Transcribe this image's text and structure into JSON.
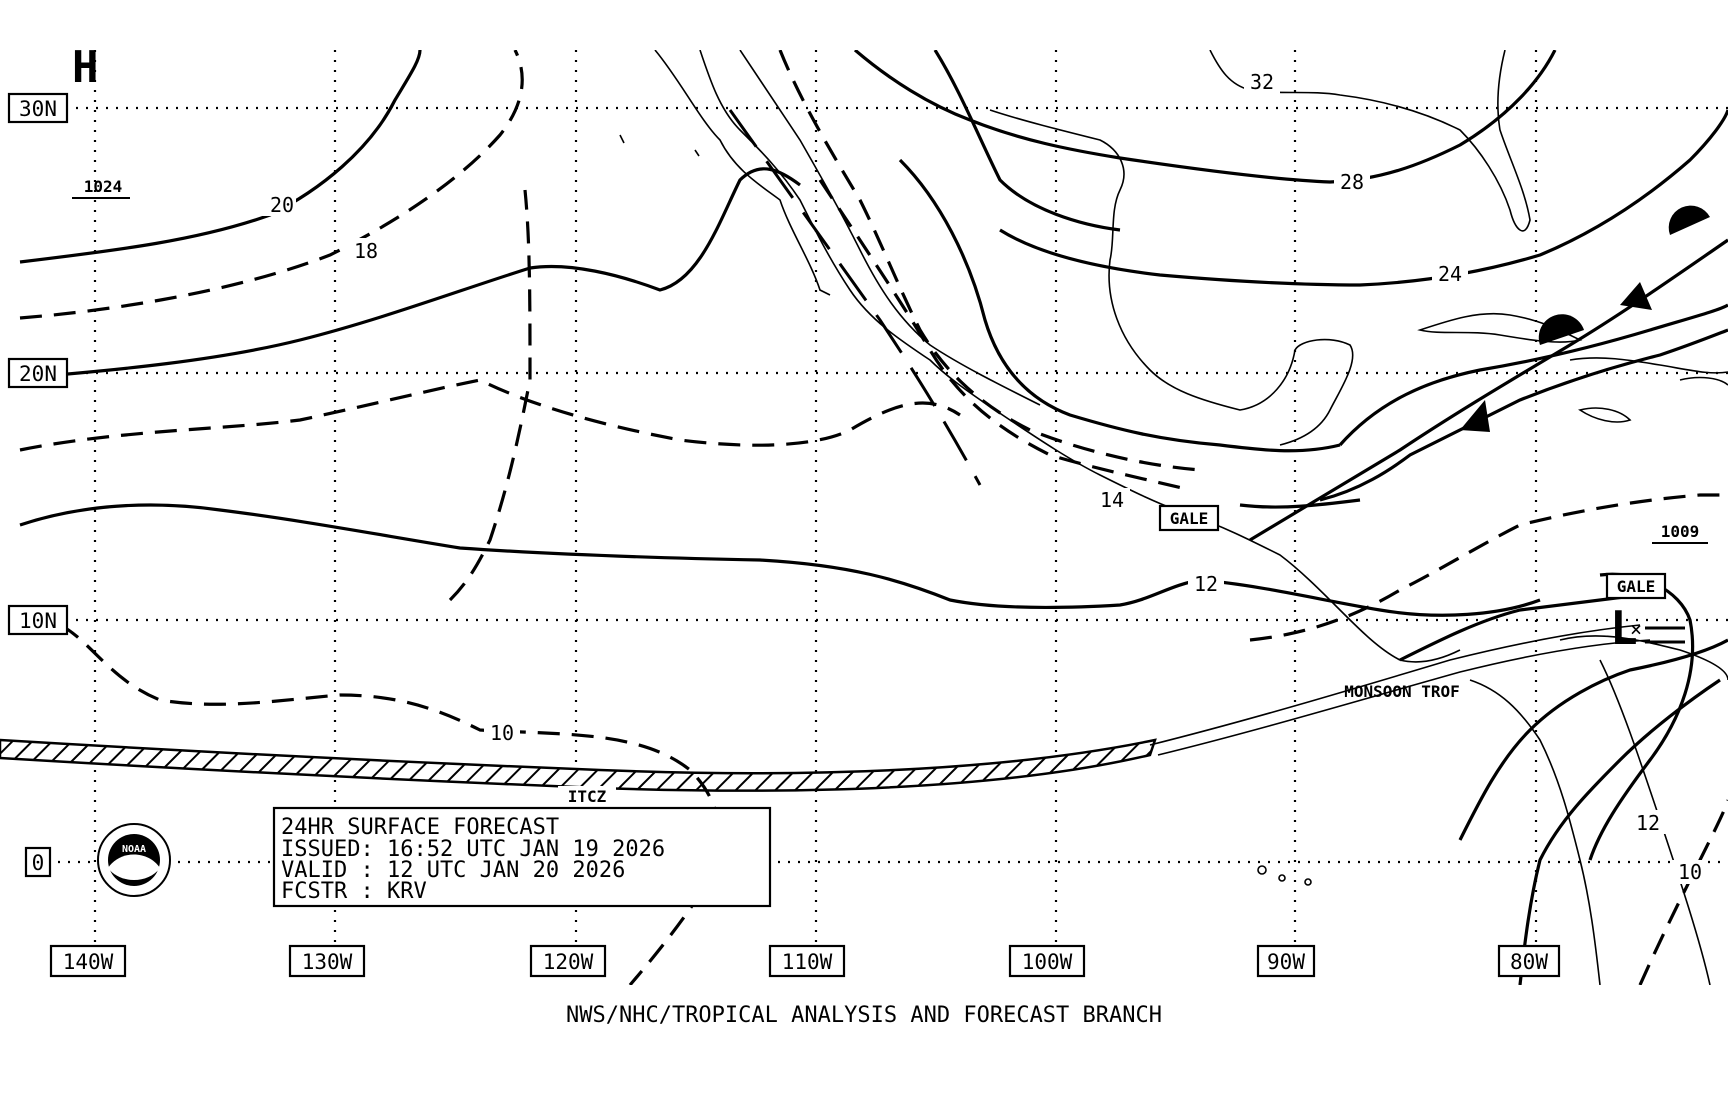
{
  "chart": {
    "title_box": {
      "line1": "24HR SURFACE FORECAST",
      "line2": "ISSUED: 16:52 UTC JAN 19 2026",
      "line3": "VALID : 12 UTC JAN 20 2026",
      "line4": "FCSTR : KRV"
    },
    "footer": "NWS/NHC/TROPICAL ANALYSIS AND FORECAST BRANCH",
    "latitude_labels": [
      "30N",
      "20N",
      "10N",
      "0"
    ],
    "longitude_labels": [
      "140W",
      "130W",
      "120W",
      "110W",
      "100W",
      "90W",
      "80W"
    ],
    "pressure_centers": [
      {
        "symbol": "H",
        "value": "1024"
      },
      {
        "symbol": "L",
        "value": "1009"
      }
    ],
    "isobar_labels": [
      "20",
      "18",
      "14",
      "12",
      "10",
      "32",
      "28",
      "24",
      "12",
      "10"
    ],
    "features": {
      "itcz": "ITCZ",
      "monsoon": "MONSOON TROF",
      "gale1": "GALE",
      "gale2": "GALE"
    },
    "logo_text": "NOAA",
    "colors": {
      "ink": "#000000",
      "background": "#ffffff"
    }
  }
}
